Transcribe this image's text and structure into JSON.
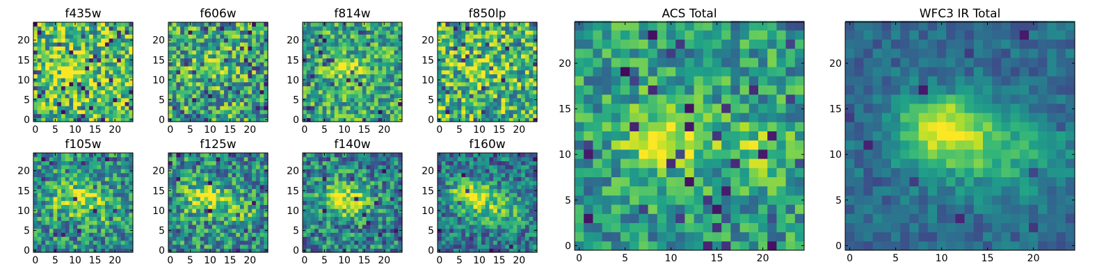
{
  "chart_data": {
    "type": "heatmap",
    "colormap": "viridis",
    "colors": {
      "viridis": [
        "#440154",
        "#482878",
        "#3e4989",
        "#31688e",
        "#26828e",
        "#1f9e89",
        "#35b779",
        "#6ece58",
        "#b5de2b",
        "#fde725"
      ],
      "axis": "#000000"
    },
    "grid": false,
    "grid_size": 25,
    "xlim": [
      -0.5,
      24.5
    ],
    "ylim": [
      -0.5,
      24.5
    ],
    "small_panels": [
      {
        "title": "f435w",
        "xticks": [
          0,
          5,
          10,
          15,
          20
        ],
        "yticks": [
          0,
          5,
          10,
          15,
          20
        ],
        "blobs": [
          {
            "x": 10,
            "y": 13,
            "sx": 3,
            "sy": 2,
            "a": 0.25
          }
        ],
        "base": 0.7,
        "noise": 0.35,
        "dark_prob": 0.07,
        "seed": 11
      },
      {
        "title": "f606w",
        "xticks": [
          0,
          5,
          10,
          15,
          20
        ],
        "yticks": [
          0,
          5,
          10,
          15,
          20
        ],
        "blobs": [
          {
            "x": 9,
            "y": 13,
            "sx": 3,
            "sy": 2,
            "a": 0.35
          }
        ],
        "base": 0.6,
        "noise": 0.35,
        "dark_prob": 0.06,
        "seed": 23
      },
      {
        "title": "f814w",
        "xticks": [
          0,
          5,
          10,
          15,
          20
        ],
        "yticks": [
          0,
          5,
          10,
          15,
          20
        ],
        "blobs": [
          {
            "x": 10,
            "y": 13,
            "sx": 3,
            "sy": 2,
            "a": 0.4
          }
        ],
        "base": 0.6,
        "noise": 0.3,
        "dark_prob": 0.05,
        "seed": 37
      },
      {
        "title": "f850lp",
        "xticks": [
          0,
          5,
          10,
          15,
          20
        ],
        "yticks": [
          0,
          5,
          10,
          15,
          20
        ],
        "blobs": [
          {
            "x": 10,
            "y": 13,
            "sx": 4,
            "sy": 3,
            "a": 0.15
          }
        ],
        "base": 0.65,
        "noise": 0.35,
        "dark_prob": 0.06,
        "seed": 41
      },
      {
        "title": "f105w",
        "xticks": [
          0,
          5,
          10,
          15,
          20
        ],
        "yticks": [
          0,
          5,
          10,
          15,
          20
        ],
        "blobs": [
          {
            "x": 11,
            "y": 13,
            "sx": 5,
            "sy": 3,
            "a": 0.4
          },
          {
            "x": 20,
            "y": 8,
            "sx": 3,
            "sy": 2,
            "a": 0.2
          }
        ],
        "base": 0.5,
        "noise": 0.3,
        "dark_prob": 0.04,
        "seed": 53
      },
      {
        "title": "f125w",
        "xticks": [
          0,
          5,
          10,
          15,
          20
        ],
        "yticks": [
          0,
          5,
          10,
          15,
          20
        ],
        "blobs": [
          {
            "x": 9,
            "y": 13,
            "sx": 4,
            "sy": 3,
            "a": 0.45
          },
          {
            "x": 18,
            "y": 9,
            "sx": 3,
            "sy": 2,
            "a": 0.2
          }
        ],
        "base": 0.5,
        "noise": 0.3,
        "dark_prob": 0.04,
        "seed": 67
      },
      {
        "title": "f140w",
        "xticks": [
          0,
          5,
          10,
          15,
          20
        ],
        "yticks": [
          0,
          5,
          10,
          15,
          20
        ],
        "blobs": [
          {
            "x": 10,
            "y": 13,
            "sx": 4,
            "sy": 3,
            "a": 0.5
          }
        ],
        "base": 0.45,
        "noise": 0.3,
        "dark_prob": 0.04,
        "seed": 79
      },
      {
        "title": "f160w",
        "xticks": [
          0,
          5,
          10,
          15,
          20
        ],
        "yticks": [
          0,
          5,
          10,
          15,
          20
        ],
        "blobs": [
          {
            "x": 8,
            "y": 14,
            "sx": 4,
            "sy": 2.5,
            "a": 0.5
          },
          {
            "x": 15,
            "y": 10,
            "sx": 5,
            "sy": 3,
            "a": 0.3
          }
        ],
        "base": 0.4,
        "noise": 0.25,
        "dark_prob": 0.04,
        "seed": 97
      }
    ],
    "large_panels": [
      {
        "title": "ACS Total",
        "xticks": [
          0,
          5,
          10,
          15,
          20
        ],
        "yticks": [
          0,
          5,
          10,
          15,
          20
        ],
        "blobs": [
          {
            "x": 10,
            "y": 12,
            "sx": 3.5,
            "sy": 2.5,
            "a": 0.45
          },
          {
            "x": 20,
            "y": 10,
            "sx": 2.5,
            "sy": 2,
            "a": 0.25
          }
        ],
        "base": 0.55,
        "noise": 0.25,
        "dark_prob": 0.05,
        "seed": 131
      },
      {
        "title": "WFC3 IR Total",
        "xticks": [
          0,
          5,
          10,
          15,
          20
        ],
        "yticks": [
          0,
          5,
          10,
          15,
          20
        ],
        "blobs": [
          {
            "x": 10,
            "y": 13,
            "sx": 3.5,
            "sy": 2.5,
            "a": 0.55
          },
          {
            "x": 16,
            "y": 10,
            "sx": 6,
            "sy": 3,
            "a": 0.3
          }
        ],
        "base": 0.35,
        "noise": 0.12,
        "dark_prob": 0.02,
        "seed": 151
      }
    ]
  }
}
